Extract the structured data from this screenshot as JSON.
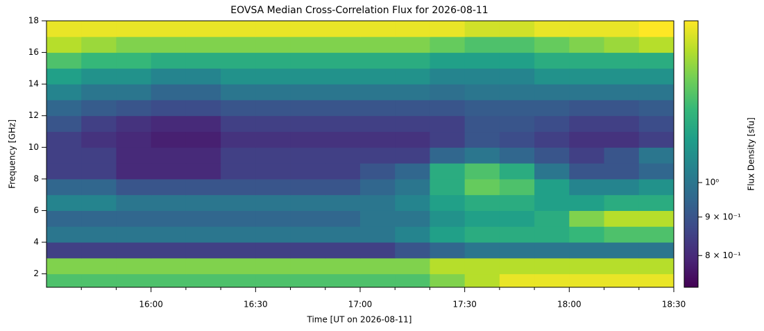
{
  "chart_data": {
    "type": "heatmap",
    "title": "EOVSA Median Cross-Correlation Flux for 2026-08-11",
    "xlabel": "Time [UT on 2026-08-11]",
    "ylabel": "Frequency [GHz]",
    "colorbar_label": "Flux Density [sfu]",
    "colormap": "viridis",
    "x": [
      "15:30",
      "15:40",
      "15:50",
      "16:00",
      "16:10",
      "16:20",
      "16:30",
      "16:40",
      "16:50",
      "17:00",
      "17:10",
      "17:20",
      "17:30",
      "17:40",
      "17:50",
      "18:00",
      "18:10",
      "18:20",
      "18:30"
    ],
    "y": [
      1.15,
      2,
      3,
      4,
      5,
      6,
      7,
      8,
      9,
      10,
      11,
      12,
      13,
      14,
      15,
      16,
      17,
      18
    ],
    "xlim": [
      "15:30",
      "18:30"
    ],
    "xticks": [
      "16:00",
      "16:30",
      "17:00",
      "17:30",
      "18:00",
      "18:30"
    ],
    "xminorticks": [
      "15:40",
      "15:50",
      "16:10",
      "16:20",
      "16:40",
      "16:50",
      "17:10",
      "17:20",
      "17:40",
      "17:50",
      "18:10",
      "18:20"
    ],
    "ylim": [
      1.15,
      18
    ],
    "yticks": [
      2,
      4,
      6,
      8,
      10,
      12,
      14,
      16,
      18
    ],
    "clim": [
      0.726,
      1.64
    ],
    "clog": true,
    "cticks": [
      {
        "value": 0.8,
        "label": "8 × 10⁻¹"
      },
      {
        "value": 0.9,
        "label": "9 × 10⁻¹"
      },
      {
        "value": 1,
        "label": "10⁰"
      }
    ],
    "z": [
      [
        1.3,
        1.3,
        1.3,
        1.3,
        1.3,
        1.3,
        1.3,
        1.3,
        1.3,
        1.3,
        1.3,
        1.4,
        1.5,
        1.6,
        1.6,
        1.6,
        1.6,
        1.6
      ],
      [
        1.4,
        1.4,
        1.4,
        1.4,
        1.4,
        1.4,
        1.4,
        1.4,
        1.4,
        1.4,
        1.4,
        1.5,
        1.5,
        1.5,
        1.5,
        1.5,
        1.5,
        1.5
      ],
      [
        0.85,
        0.85,
        0.85,
        0.85,
        0.85,
        0.85,
        0.85,
        0.85,
        0.85,
        0.85,
        0.9,
        0.95,
        1.0,
        1.0,
        1.0,
        1.0,
        1.0,
        1.0
      ],
      [
        1.0,
        1.0,
        1.0,
        1.0,
        1.0,
        1.0,
        1.0,
        1.0,
        1.0,
        1.0,
        1.05,
        1.15,
        1.2,
        1.2,
        1.2,
        1.25,
        1.3,
        1.3
      ],
      [
        0.95,
        0.95,
        0.95,
        0.95,
        0.95,
        0.95,
        0.95,
        0.95,
        0.95,
        1.0,
        1.0,
        1.1,
        1.15,
        1.15,
        1.2,
        1.4,
        1.5,
        1.5
      ],
      [
        1.05,
        1.05,
        1.0,
        1.0,
        1.0,
        1.0,
        1.0,
        1.0,
        1.0,
        1.0,
        1.05,
        1.15,
        1.2,
        1.2,
        1.15,
        1.15,
        1.2,
        1.2
      ],
      [
        0.95,
        0.95,
        0.9,
        0.9,
        0.9,
        0.9,
        0.9,
        0.9,
        0.9,
        0.95,
        1.0,
        1.2,
        1.35,
        1.3,
        1.15,
        1.05,
        1.05,
        1.1
      ],
      [
        0.85,
        0.85,
        0.8,
        0.8,
        0.8,
        0.85,
        0.85,
        0.85,
        0.85,
        0.9,
        0.95,
        1.2,
        1.3,
        1.2,
        1.0,
        0.9,
        0.9,
        0.95
      ],
      [
        0.85,
        0.85,
        0.8,
        0.8,
        0.8,
        0.85,
        0.85,
        0.85,
        0.85,
        0.85,
        0.85,
        0.95,
        1.0,
        0.95,
        0.9,
        0.85,
        0.9,
        1.0
      ],
      [
        0.85,
        0.82,
        0.8,
        0.78,
        0.78,
        0.82,
        0.82,
        0.82,
        0.82,
        0.82,
        0.82,
        0.85,
        0.9,
        0.88,
        0.85,
        0.82,
        0.82,
        0.85
      ],
      [
        0.9,
        0.85,
        0.82,
        0.8,
        0.8,
        0.85,
        0.85,
        0.85,
        0.85,
        0.85,
        0.85,
        0.85,
        0.9,
        0.9,
        0.88,
        0.85,
        0.85,
        0.88
      ],
      [
        0.95,
        0.92,
        0.9,
        0.88,
        0.88,
        0.9,
        0.9,
        0.9,
        0.9,
        0.9,
        0.9,
        0.9,
        0.92,
        0.92,
        0.92,
        0.9,
        0.9,
        0.92
      ],
      [
        1.05,
        1.0,
        1.0,
        0.95,
        0.95,
        1.0,
        1.0,
        1.0,
        1.0,
        1.0,
        1.0,
        0.98,
        1.0,
        1.0,
        1.0,
        1.0,
        1.0,
        1.0
      ],
      [
        1.15,
        1.1,
        1.1,
        1.05,
        1.05,
        1.1,
        1.1,
        1.1,
        1.1,
        1.1,
        1.1,
        1.05,
        1.05,
        1.05,
        1.1,
        1.1,
        1.1,
        1.1
      ],
      [
        1.3,
        1.25,
        1.25,
        1.2,
        1.2,
        1.2,
        1.2,
        1.2,
        1.2,
        1.2,
        1.2,
        1.15,
        1.15,
        1.15,
        1.2,
        1.2,
        1.2,
        1.2
      ],
      [
        1.5,
        1.45,
        1.4,
        1.4,
        1.4,
        1.4,
        1.4,
        1.4,
        1.4,
        1.4,
        1.4,
        1.35,
        1.3,
        1.3,
        1.35,
        1.4,
        1.45,
        1.5
      ],
      [
        1.6,
        1.6,
        1.6,
        1.6,
        1.6,
        1.6,
        1.6,
        1.6,
        1.6,
        1.6,
        1.6,
        1.6,
        1.55,
        1.55,
        1.6,
        1.6,
        1.6,
        1.64
      ]
    ]
  }
}
